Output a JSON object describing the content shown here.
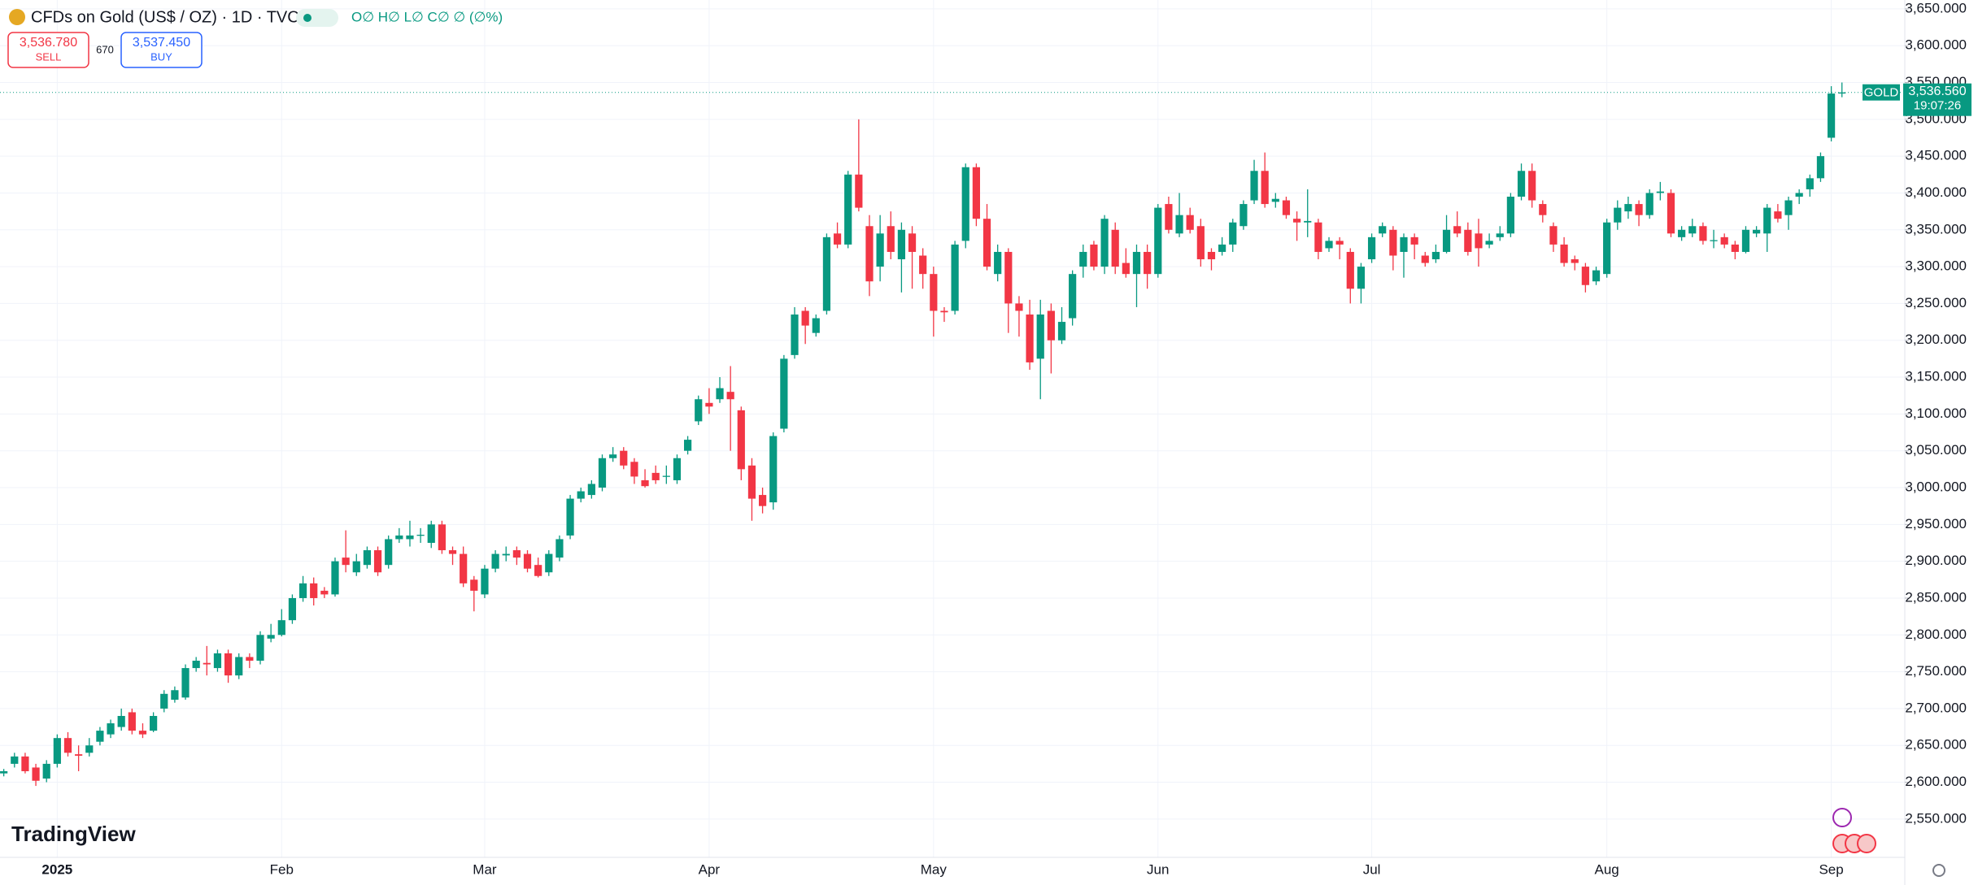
{
  "chart_data": {
    "type": "candlestick",
    "color_up": "#089981",
    "color_down": "#f23645",
    "grid": true,
    "header": {
      "title": "CFDs on Gold (US$ / OZ) · 1D · TVC",
      "ohlc": "O∅ H∅ L∅ C∅ ∅ (∅%)",
      "sell_price": "3,536.780",
      "sell": "SELL",
      "spread": "670",
      "buy_price": "3,537.450",
      "buy": "BUY",
      "symbol": "GOLD",
      "last_price": "3,536.560",
      "countdown": "19:07:26",
      "logo": "TradingView"
    },
    "categories": [
      null,
      null,
      null,
      null,
      null,
      "2025",
      null,
      null,
      null,
      null,
      null,
      null,
      null,
      null,
      null,
      null,
      null,
      null,
      null,
      null,
      null,
      null,
      null,
      null,
      null,
      null,
      "Feb",
      null,
      null,
      null,
      null,
      null,
      null,
      null,
      null,
      null,
      null,
      null,
      null,
      null,
      null,
      null,
      null,
      null,
      null,
      "Mar",
      null,
      null,
      null,
      null,
      null,
      null,
      null,
      null,
      null,
      null,
      null,
      null,
      null,
      null,
      null,
      null,
      null,
      null,
      null,
      null,
      "Apr",
      null,
      null,
      null,
      null,
      null,
      null,
      null,
      null,
      null,
      null,
      null,
      null,
      null,
      null,
      null,
      null,
      null,
      null,
      null,
      null,
      "May",
      null,
      null,
      null,
      null,
      null,
      null,
      null,
      null,
      null,
      null,
      null,
      null,
      null,
      null,
      null,
      null,
      null,
      null,
      null,
      null,
      "Jun",
      null,
      null,
      null,
      null,
      null,
      null,
      null,
      null,
      null,
      null,
      null,
      null,
      null,
      null,
      null,
      null,
      null,
      null,
      null,
      "Jul",
      null,
      null,
      null,
      null,
      null,
      null,
      null,
      null,
      null,
      null,
      null,
      null,
      null,
      null,
      null,
      null,
      null,
      null,
      null,
      null,
      null,
      "Aug",
      null,
      null,
      null,
      null,
      null,
      null,
      null,
      null,
      null,
      null,
      null,
      null,
      null,
      null,
      null,
      null,
      null,
      null,
      null,
      null,
      "Sep",
      null
    ],
    "open": [
      2612,
      2625,
      2635,
      2620,
      2605,
      2625,
      2660,
      2638,
      2640,
      2655,
      2665,
      2675,
      2695,
      2670,
      2670,
      2700,
      2712,
      2715,
      2755,
      2762,
      2755,
      2775,
      2745,
      2770,
      2765,
      2795,
      2800,
      2820,
      2850,
      2870,
      2860,
      2855,
      2905,
      2885,
      2895,
      2915,
      2895,
      2930,
      2930,
      2935,
      2925,
      2950,
      2915,
      2910,
      2875,
      2855,
      2890,
      2908,
      2915,
      2910,
      2895,
      2885,
      2905,
      2935,
      2985,
      2990,
      3000,
      3040,
      3050,
      3035,
      3010,
      3020,
      3015,
      3010,
      3050,
      3090,
      3115,
      3120,
      3130,
      3105,
      3030,
      2990,
      2980,
      3080,
      3180,
      3240,
      3210,
      3240,
      3345,
      3330,
      3425,
      3355,
      3300,
      3355,
      3310,
      3345,
      3315,
      3290,
      3240,
      3240,
      3335,
      3435,
      3365,
      3290,
      3320,
      3250,
      3235,
      3175,
      3240,
      3200,
      3230,
      3300,
      3330,
      3300,
      3350,
      3305,
      3290,
      3320,
      3290,
      3385,
      3345,
      3370,
      3355,
      3320,
      3320,
      3330,
      3355,
      3390,
      3430,
      3388,
      3390,
      3365,
      3360,
      3360,
      3325,
      3335,
      3320,
      3270,
      3310,
      3345,
      3350,
      3320,
      3340,
      3315,
      3310,
      3320,
      3355,
      3350,
      3345,
      3330,
      3340,
      3345,
      3395,
      3430,
      3385,
      3355,
      3330,
      3310,
      3300,
      3280,
      3290,
      3360,
      3375,
      3385,
      3370,
      3400,
      3400,
      3340,
      3345,
      3355,
      3335,
      3340,
      3330,
      3320,
      3345,
      3345,
      3375,
      3370,
      3395,
      3405,
      3420,
      3475,
      3535
    ],
    "high": [
      2618,
      2640,
      2640,
      2625,
      2630,
      2665,
      2668,
      2650,
      2660,
      2675,
      2685,
      2700,
      2700,
      2680,
      2695,
      2725,
      2730,
      2760,
      2770,
      2785,
      2780,
      2780,
      2775,
      2775,
      2805,
      2815,
      2835,
      2855,
      2880,
      2878,
      2865,
      2905,
      2942,
      2910,
      2920,
      2920,
      2935,
      2945,
      2955,
      2945,
      2955,
      2955,
      2920,
      2920,
      2880,
      2895,
      2915,
      2920,
      2920,
      2915,
      2905,
      2915,
      2935,
      2990,
      3000,
      3010,
      3045,
      3055,
      3055,
      3040,
      3025,
      3030,
      3030,
      3045,
      3070,
      3125,
      3135,
      3150,
      3165,
      3110,
      3040,
      3000,
      3075,
      3180,
      3245,
      3245,
      3235,
      3345,
      3360,
      3430,
      3500,
      3370,
      3370,
      3375,
      3360,
      3355,
      3325,
      3300,
      3245,
      3335,
      3440,
      3440,
      3385,
      3330,
      3325,
      3260,
      3255,
      3255,
      3250,
      3245,
      3295,
      3330,
      3335,
      3370,
      3360,
      3325,
      3330,
      3330,
      3385,
      3395,
      3400,
      3380,
      3365,
      3325,
      3340,
      3365,
      3390,
      3445,
      3455,
      3400,
      3395,
      3375,
      3405,
      3365,
      3340,
      3340,
      3325,
      3305,
      3345,
      3360,
      3355,
      3345,
      3345,
      3320,
      3330,
      3370,
      3375,
      3360,
      3365,
      3345,
      3355,
      3400,
      3440,
      3440,
      3390,
      3360,
      3340,
      3315,
      3305,
      3300,
      3365,
      3390,
      3395,
      3390,
      3405,
      3415,
      3405,
      3355,
      3365,
      3360,
      3350,
      3345,
      3335,
      3355,
      3355,
      3385,
      3385,
      3395,
      3405,
      3425,
      3455,
      3545,
      3550
    ],
    "low": [
      2608,
      2620,
      2612,
      2595,
      2600,
      2620,
      2635,
      2615,
      2635,
      2650,
      2660,
      2670,
      2665,
      2660,
      2668,
      2695,
      2708,
      2712,
      2750,
      2745,
      2750,
      2735,
      2740,
      2755,
      2760,
      2790,
      2798,
      2815,
      2845,
      2840,
      2850,
      2852,
      2885,
      2880,
      2890,
      2880,
      2890,
      2925,
      2920,
      2925,
      2918,
      2910,
      2895,
      2865,
      2832,
      2850,
      2885,
      2900,
      2895,
      2885,
      2878,
      2880,
      2900,
      2930,
      2980,
      2985,
      2995,
      3035,
      3025,
      3005,
      3000,
      3005,
      3005,
      3005,
      3045,
      3085,
      3100,
      3115,
      3050,
      3010,
      2955,
      2965,
      2970,
      3075,
      3175,
      3195,
      3205,
      3235,
      3325,
      3325,
      3375,
      3260,
      3280,
      3310,
      3265,
      3270,
      3270,
      3205,
      3225,
      3235,
      3325,
      3355,
      3295,
      3280,
      3210,
      3205,
      3160,
      3120,
      3155,
      3195,
      3220,
      3285,
      3295,
      3290,
      3290,
      3285,
      3245,
      3270,
      3285,
      3345,
      3340,
      3345,
      3300,
      3295,
      3315,
      3320,
      3350,
      3385,
      3380,
      3380,
      3365,
      3335,
      3340,
      3310,
      3320,
      3310,
      3250,
      3250,
      3305,
      3340,
      3295,
      3285,
      3310,
      3300,
      3305,
      3318,
      3340,
      3315,
      3300,
      3325,
      3335,
      3340,
      3390,
      3380,
      3360,
      3320,
      3300,
      3295,
      3265,
      3275,
      3285,
      3350,
      3365,
      3355,
      3365,
      3390,
      3340,
      3335,
      3340,
      3330,
      3325,
      3325,
      3310,
      3318,
      3340,
      3320,
      3360,
      3350,
      3385,
      3395,
      3415,
      3470,
      3530
    ],
    "close": [
      2615,
      2635,
      2615,
      2602,
      2625,
      2660,
      2640,
      2636,
      2650,
      2670,
      2680,
      2690,
      2670,
      2665,
      2690,
      2720,
      2725,
      2755,
      2765,
      2760,
      2775,
      2745,
      2770,
      2765,
      2800,
      2800,
      2820,
      2850,
      2870,
      2850,
      2855,
      2900,
      2895,
      2900,
      2915,
      2885,
      2930,
      2935,
      2935,
      2936,
      2950,
      2915,
      2910,
      2870,
      2860,
      2890,
      2910,
      2910,
      2905,
      2890,
      2880,
      2910,
      2930,
      2985,
      2995,
      3005,
      3040,
      3045,
      3030,
      3015,
      3002,
      3010,
      3016,
      3040,
      3065,
      3120,
      3110,
      3135,
      3120,
      3025,
      2985,
      2975,
      3070,
      3175,
      3235,
      3220,
      3230,
      3340,
      3330,
      3425,
      3380,
      3280,
      3345,
      3320,
      3350,
      3320,
      3290,
      3240,
      3238,
      3330,
      3435,
      3365,
      3300,
      3320,
      3250,
      3240,
      3170,
      3235,
      3200,
      3225,
      3290,
      3320,
      3300,
      3365,
      3300,
      3290,
      3320,
      3290,
      3380,
      3350,
      3370,
      3350,
      3310,
      3310,
      3330,
      3360,
      3385,
      3430,
      3385,
      3392,
      3370,
      3360,
      3362,
      3320,
      3335,
      3330,
      3270,
      3300,
      3340,
      3355,
      3315,
      3340,
      3330,
      3305,
      3320,
      3350,
      3345,
      3320,
      3325,
      3335,
      3345,
      3395,
      3430,
      3390,
      3370,
      3330,
      3305,
      3305,
      3275,
      3295,
      3360,
      3380,
      3385,
      3370,
      3400,
      3402,
      3345,
      3350,
      3355,
      3335,
      3336,
      3330,
      3320,
      3350,
      3350,
      3380,
      3365,
      3390,
      3400,
      3420,
      3450,
      3535,
      3536.56
    ],
    "ylim": [
      2498,
      3662
    ],
    "yticks": [
      {
        "value": 3650,
        "label": "3,650.000"
      },
      {
        "value": 3600,
        "label": "3,600.000"
      },
      {
        "value": 3550,
        "label": "3,550.000"
      },
      {
        "value": 3500,
        "label": "3,500.000"
      },
      {
        "value": 3450,
        "label": "3,450.000"
      },
      {
        "value": 3400,
        "label": "3,400.000"
      },
      {
        "value": 3350,
        "label": "3,350.000"
      },
      {
        "value": 3300,
        "label": "3,300.000"
      },
      {
        "value": 3250,
        "label": "3,250.000"
      },
      {
        "value": 3200,
        "label": "3,200.000"
      },
      {
        "value": 3150,
        "label": "3,150.000"
      },
      {
        "value": 3100,
        "label": "3,100.000"
      },
      {
        "value": 3050,
        "label": "3,050.000"
      },
      {
        "value": 3000,
        "label": "3,000.000"
      },
      {
        "value": 2950,
        "label": "2,950.000"
      },
      {
        "value": 2900,
        "label": "2,900.000"
      },
      {
        "value": 2850,
        "label": "2,850.000"
      },
      {
        "value": 2800,
        "label": "2,800.000"
      },
      {
        "value": 2750,
        "label": "2,750.000"
      },
      {
        "value": 2700,
        "label": "2,700.000"
      },
      {
        "value": 2650,
        "label": "2,650.000"
      },
      {
        "value": 2600,
        "label": "2,600.000"
      },
      {
        "value": 2550,
        "label": "2,550.000"
      }
    ]
  }
}
